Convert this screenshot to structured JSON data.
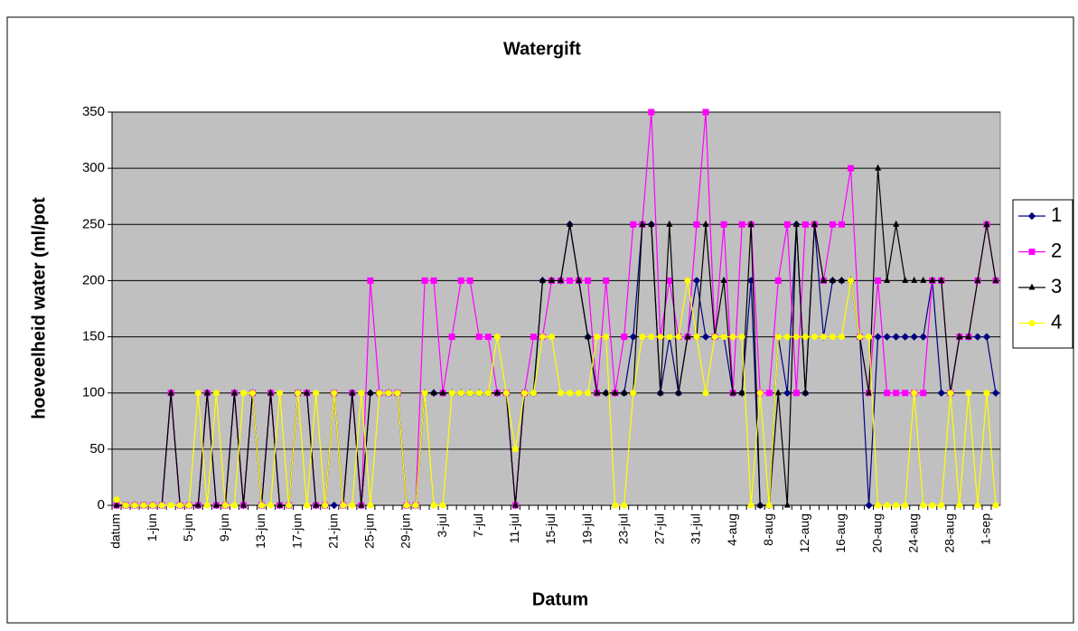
{
  "chart_data": {
    "type": "line",
    "title": "Watergift",
    "x_label": "Datum",
    "y_label": "hoeveelheid water (ml/pot",
    "categories": [
      "datum",
      null,
      null,
      null,
      "1-jun",
      null,
      null,
      null,
      "5-jun",
      null,
      null,
      null,
      "9-jun",
      null,
      null,
      null,
      "13-jun",
      null,
      null,
      null,
      "17-jun",
      null,
      null,
      null,
      "21-jun",
      null,
      null,
      null,
      "25-jun",
      null,
      null,
      null,
      "29-jun",
      null,
      null,
      null,
      "3-jul",
      null,
      null,
      null,
      "7-jul",
      null,
      null,
      null,
      "11-jul",
      null,
      null,
      null,
      "15-jul",
      null,
      null,
      null,
      "19-jul",
      null,
      null,
      null,
      "23-jul",
      null,
      null,
      null,
      "27-jul",
      null,
      null,
      null,
      "31-jul",
      null,
      null,
      null,
      "4-aug",
      null,
      null,
      null,
      "8-aug",
      null,
      null,
      null,
      "12-aug",
      null,
      null,
      null,
      "16-aug",
      null,
      null,
      null,
      "20-aug",
      null,
      null,
      null,
      "24-aug",
      null,
      null,
      null,
      "28-aug",
      null,
      null,
      null,
      "1-sep",
      null
    ],
    "series": [
      {
        "name": "1",
        "color": "#000080",
        "values": [
          0,
          0,
          0,
          0,
          0,
          0,
          100,
          0,
          0,
          0,
          100,
          0,
          0,
          100,
          0,
          100,
          0,
          100,
          0,
          0,
          100,
          100,
          0,
          0,
          0,
          0,
          100,
          0,
          100,
          100,
          100,
          100,
          0,
          0,
          100,
          100,
          100,
          100,
          100,
          100,
          100,
          100,
          100,
          100,
          0,
          100,
          100,
          200,
          200,
          200,
          250,
          200,
          150,
          100,
          100,
          100,
          100,
          150,
          250,
          250,
          100,
          150,
          100,
          150,
          200,
          150,
          150,
          150,
          100,
          100,
          200,
          0,
          0,
          150,
          100,
          250,
          100,
          250,
          150,
          200,
          200,
          200,
          150,
          0,
          150,
          150,
          150,
          150,
          150,
          150,
          200,
          100,
          100,
          150,
          150,
          150,
          150,
          100
        ]
      },
      {
        "name": "2",
        "color": "#ff00ff",
        "values": [
          0,
          0,
          0,
          0,
          0,
          0,
          100,
          0,
          0,
          0,
          100,
          0,
          0,
          100,
          0,
          100,
          0,
          100,
          0,
          0,
          100,
          100,
          0,
          0,
          100,
          0,
          100,
          0,
          200,
          100,
          100,
          100,
          0,
          0,
          200,
          200,
          100,
          150,
          200,
          200,
          150,
          150,
          100,
          100,
          0,
          100,
          150,
          150,
          200,
          200,
          200,
          200,
          200,
          100,
          200,
          100,
          150,
          250,
          250,
          350,
          150,
          200,
          150,
          150,
          250,
          350,
          150,
          250,
          100,
          250,
          250,
          100,
          100,
          200,
          250,
          100,
          250,
          250,
          200,
          250,
          250,
          300,
          150,
          100,
          200,
          100,
          100,
          100,
          100,
          100,
          200,
          200,
          100,
          150,
          150,
          200,
          250,
          200
        ]
      },
      {
        "name": "3",
        "color": "#000000",
        "values": [
          0,
          0,
          0,
          0,
          0,
          0,
          100,
          0,
          0,
          0,
          100,
          0,
          0,
          100,
          0,
          100,
          0,
          100,
          0,
          0,
          100,
          100,
          0,
          0,
          100,
          0,
          100,
          0,
          100,
          100,
          100,
          100,
          0,
          0,
          100,
          100,
          100,
          100,
          100,
          100,
          100,
          100,
          100,
          100,
          0,
          100,
          100,
          200,
          200,
          200,
          250,
          200,
          150,
          100,
          100,
          100,
          100,
          100,
          250,
          250,
          100,
          250,
          100,
          150,
          150,
          250,
          150,
          200,
          100,
          100,
          250,
          0,
          0,
          100,
          0,
          250,
          100,
          250,
          200,
          200,
          200,
          200,
          150,
          100,
          300,
          200,
          250,
          200,
          200,
          200,
          200,
          200,
          100,
          150,
          150,
          200,
          250,
          200
        ]
      },
      {
        "name": "4",
        "color": "#ffff00",
        "values": [
          5,
          0,
          0,
          0,
          0,
          0,
          0,
          0,
          0,
          100,
          0,
          100,
          0,
          0,
          100,
          100,
          0,
          0,
          100,
          0,
          100,
          0,
          100,
          0,
          100,
          0,
          0,
          100,
          0,
          100,
          100,
          100,
          0,
          0,
          100,
          0,
          0,
          100,
          100,
          100,
          100,
          100,
          150,
          100,
          50,
          100,
          100,
          150,
          150,
          100,
          100,
          100,
          100,
          150,
          150,
          0,
          0,
          100,
          150,
          150,
          150,
          150,
          150,
          200,
          150,
          100,
          150,
          150,
          150,
          150,
          0,
          100,
          0,
          150,
          150,
          150,
          150,
          150,
          150,
          150,
          150,
          200,
          150,
          150,
          0,
          0,
          0,
          0,
          100,
          0,
          0,
          0,
          100,
          0,
          100,
          0,
          100,
          0
        ]
      }
    ],
    "ylim": [
      0,
      350
    ],
    "yticks": [
      0,
      50,
      100,
      150,
      200,
      250,
      300,
      350
    ],
    "grid": true,
    "legend": "right"
  }
}
